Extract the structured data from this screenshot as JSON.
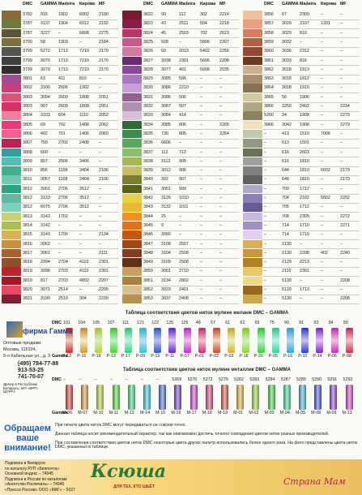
{
  "header": [
    "DMC",
    "GAMMA",
    "Madeira",
    "Кирова",
    "MF"
  ],
  "tables": [
    {
      "rows": [
        [
          "3782",
          "915",
          "1902",
          "6002",
          "2190"
        ],
        [
          "3787",
          "3137",
          "1904",
          "6012",
          "2192"
        ],
        [
          "3787",
          "3227",
          "–",
          "6808",
          "2275"
        ],
        [
          "3790",
          "58",
          "1903",
          "–",
          "2184"
        ],
        [
          "3799",
          "5272",
          "1713",
          "7210",
          "2170"
        ],
        [
          "3799",
          "3070",
          "1713",
          "7210",
          "2170"
        ],
        [
          "3799",
          "3079",
          "1713",
          "7210",
          "2170"
        ],
        [
          "3801",
          "63",
          "411",
          "810",
          "–"
        ],
        [
          "3802",
          "3100",
          "2606",
          "1302",
          "–"
        ],
        [
          "3803",
          "3094",
          "2609",
          "1808",
          "2051"
        ],
        [
          "3803",
          "907",
          "2609",
          "1808",
          "2051"
        ],
        [
          "3804",
          "3103",
          "604",
          "1110",
          "2052"
        ],
        [
          "3805",
          "69",
          "702",
          "1408",
          "2062"
        ],
        [
          "3806",
          "402",
          "701",
          "1406",
          "2060"
        ],
        [
          "3807",
          "759",
          "2702",
          "2408",
          "–"
        ],
        [
          "3808",
          "660",
          "–",
          "–",
          "–"
        ],
        [
          "3809",
          "857",
          "2506",
          "3406",
          "–"
        ],
        [
          "3810",
          "856",
          "1108",
          "3404",
          "2106"
        ],
        [
          "3811",
          "3057",
          "1108",
          "3404",
          "2106"
        ],
        [
          "3812",
          "3061",
          "2706",
          "3512",
          "–"
        ],
        [
          "3812",
          "3133",
          "2706",
          "3512",
          "–"
        ],
        [
          "3812",
          "6075",
          "2706",
          "3512",
          "–"
        ],
        [
          "3813",
          "3143",
          "1702",
          "–",
          "–"
        ],
        [
          "3814",
          "3142",
          "–",
          "–",
          "–"
        ],
        [
          "3815",
          "3143",
          "1700",
          "–",
          "2134"
        ],
        [
          "3816",
          "3062",
          "–",
          "–",
          "–"
        ],
        [
          "3817",
          "3061",
          "–",
          "–",
          "2111"
        ],
        [
          "3818",
          "2994",
          "2704",
          "4110",
          "2301"
        ],
        [
          "3819",
          "3098",
          "2703",
          "4110",
          "2301"
        ],
        [
          "3819",
          "817",
          "2703",
          "4802",
          "2207"
        ],
        [
          "3820",
          "3071",
          "2514",
          "–",
          "2205"
        ],
        [
          "3821",
          "3190",
          "2510",
          "304",
          "2239"
        ]
      ]
    },
    {
      "rows": [
        [
          "3822",
          "99",
          "112",
          "302",
          "2214"
        ],
        [
          "3823",
          "43",
          "2511",
          "504",
          "2218"
        ],
        [
          "3824",
          "45",
          "2503",
          "702",
          "2623"
        ],
        [
          "3825",
          "928",
          "–",
          "5806",
          "2307"
        ],
        [
          "3826",
          "50",
          "2013",
          "5402",
          "2256"
        ],
        [
          "3827",
          "3038",
          "2301",
          "5605",
          "2208"
        ],
        [
          "3828",
          "3077",
          "401",
          "5608",
          "2035"
        ],
        [
          "3829",
          "3085",
          "506",
          "–",
          "–"
        ],
        [
          "3830",
          "3086",
          "2210",
          "–",
          "–"
        ],
        [
          "3831",
          "3086",
          "506",
          "–",
          "–"
        ],
        [
          "3832",
          "3087",
          "507",
          "–",
          "–"
        ],
        [
          "3833",
          "3084",
          "414",
          "–",
          "–"
        ],
        [
          "3834",
          "3085",
          "806",
          "–",
          "2265"
        ],
        [
          "3835",
          "730",
          "805",
          "–",
          "2264"
        ],
        [
          "3836",
          "6606",
          "–",
          "–",
          "–"
        ],
        [
          "3837",
          "112",
          "712",
          "–",
          "–"
        ],
        [
          "3838",
          "3112",
          "905",
          "–",
          "–"
        ],
        [
          "3839",
          "3012",
          "906",
          "–",
          "–"
        ],
        [
          "3840",
          "302",
          "907",
          "–",
          "–"
        ],
        [
          "3841",
          "3001",
          "909",
          "–",
          "–"
        ],
        [
          "3842",
          "3126",
          "1010",
          "–",
          "–"
        ],
        [
          "3843",
          "3132",
          "1011",
          "–",
          "–"
        ],
        [
          "3844",
          "25",
          "–",
          "–",
          "–"
        ],
        [
          "3845",
          "9",
          "–",
          "–",
          "–"
        ],
        [
          "3846",
          "3090",
          "–",
          "–",
          "–"
        ],
        [
          "3847",
          "3108",
          "2507",
          "–",
          "–"
        ],
        [
          "3848",
          "3104",
          "2508",
          "–",
          "–"
        ],
        [
          "3849",
          "3109",
          "2508",
          "–",
          "–"
        ],
        [
          "3850",
          "3001",
          "2710",
          "–",
          "–"
        ],
        [
          "3851",
          "3134",
          "2802",
          "–",
          "–"
        ],
        [
          "3852",
          "3029",
          "2401",
          "–",
          "–"
        ],
        [
          "3853",
          "3037",
          "2408",
          "–",
          "–"
        ]
      ]
    },
    {
      "rows": [
        [
          "3856",
          "67",
          "2309",
          "–",
          "–"
        ],
        [
          "3857",
          "3029",
          "2107",
          "1201",
          "–"
        ],
        [
          "3858",
          "3029",
          "810",
          "–",
          "–"
        ],
        [
          "3859",
          "3032",
          "–",
          "–",
          "–"
        ],
        [
          "3860",
          "3036",
          "2312",
          "–",
          "–"
        ],
        [
          "3861",
          "3033",
          "816",
          "–",
          "–"
        ],
        [
          "3862",
          "3018",
          "1913",
          "–",
          "–"
        ],
        [
          "3863",
          "3018",
          "1912",
          "–",
          "–"
        ],
        [
          "3864",
          "3018",
          "1910",
          "–",
          "–"
        ],
        [
          "3865",
          "56",
          "1906",
          "–",
          "–"
        ],
        [
          "3866",
          "3250",
          "2402",
          "–",
          "2234"
        ],
        [
          "5200",
          "34",
          "1908",
          "–",
          "2279"
        ],
        [
          "3866",
          "3042",
          "1908",
          "–",
          "2279"
        ],
        [
          "–",
          "413",
          "1510",
          "7006",
          "–"
        ],
        [
          "–",
          "613",
          "1501",
          "–",
          "–"
        ],
        [
          "–",
          "616",
          "2603",
          "–",
          "–"
        ],
        [
          "–",
          "616",
          "1810",
          "–",
          "–"
        ],
        [
          "–",
          "644",
          "1810",
          "6602",
          "2179"
        ],
        [
          "–",
          "646",
          "1810",
          "–",
          "2179"
        ],
        [
          "–",
          "700",
          "1712",
          "–",
          "–"
        ],
        [
          "–",
          "704",
          "2102",
          "5802",
          "2202"
        ],
        [
          "–",
          "705",
          "1712",
          "–",
          "–"
        ],
        [
          "–",
          "708",
          "2305",
          "–",
          "2272"
        ],
        [
          "–",
          "714",
          "1710",
          "–",
          "2271"
        ],
        [
          "–",
          "714",
          "1710",
          "–",
          "–"
        ],
        [
          "–",
          "2130",
          "–",
          "–",
          "–"
        ],
        [
          "–",
          "2130",
          "2208",
          "402",
          "2240"
        ],
        [
          "–",
          "2120",
          "2213",
          "–",
          "–"
        ],
        [
          "–",
          "2110",
          "2301",
          "–",
          "–"
        ],
        [
          "–",
          "5130",
          "–",
          "–",
          "2208"
        ],
        [
          "–",
          "5120",
          "1713",
          "–",
          "–"
        ],
        [
          "–",
          "5130",
          "–",
          "–",
          "2208"
        ]
      ]
    }
  ],
  "melange": {
    "title": "Таблица соответствия цветов ниток мулине меланж DMC – GAMMA",
    "dmc_label": "DMC",
    "gamma_label": "Gamma",
    "dmc": [
      "101",
      "104",
      "105",
      "107",
      "111",
      "121",
      "122",
      "125",
      "126",
      "48",
      "57",
      "61",
      "62",
      "69",
      "75",
      "90",
      "91",
      "93",
      "94",
      "99"
    ],
    "gamma": [
      "P-12",
      "P-15",
      "P-19",
      "P-13",
      "P-17",
      "P-09",
      "P-13",
      "P-11",
      "P-07",
      "P-01",
      "P-02",
      "P-03",
      "P-18",
      "P-20",
      "P-05",
      "P-16",
      "P-10",
      "P-14",
      "P-06",
      "P-08"
    ]
  },
  "metallic": {
    "title": "Таблица соответствия цветов ниток мулине металлик DMC – GAMMA",
    "dmc_label": "DMC",
    "gamma_label": "Gamma",
    "dmc": [
      "–",
      "–",
      "–",
      "–",
      "–",
      "–",
      "–",
      "5269",
      "5270",
      "5272",
      "5279",
      "5282",
      "5283",
      "5284",
      "5287",
      "5289",
      "5290",
      "5291",
      "5292"
    ],
    "gamma": [
      "M-06",
      "M-07",
      "M-10",
      "M-11",
      "M-12",
      "M-14",
      "M-15",
      "M-16",
      "M-17",
      "M-18",
      "M-19",
      "M-01",
      "M-02",
      "M-03",
      "M-04",
      "M-05",
      "M-08",
      "M-09",
      "M-13"
    ]
  },
  "company": {
    "name": "фирма Гамма",
    "lines": [
      "Оптовые продажи:",
      "Москва, 111024,",
      "5-я Кабельная ул., д. 3",
      "(495) 784-77-88",
      "913-53-25",
      "741-70-07"
    ],
    "dealer": "Дилер в Республике Беларусь: ИП «ВРП-ШУРА»"
  },
  "notice": "Обращаем ваше внимание!",
  "notes": [
    "При печати цвета ниток DMC могут передаваться не совсем точно.",
    "Данная таблица носит рекомендательный характер, так как невозможно достичь точного совпадения цветов ниток разных производителей.",
    "При составлении соответствия цветов ниток DMC некоторые цвета других палитр использовались более одного раза. На фото представлены цвета ниток DMC, указанных в таблице."
  ],
  "subscription": [
    "Подписка в Беларуси",
    "по каталогу РУП «Белпочта»",
    "Основной индекс – 74945",
    "Подписка в России по каталогам:",
    "«Агентство Роспечать» – 74945",
    "«Пресса России» ООО «МАГ» – 5027"
  ],
  "magazine": {
    "title": "Ксюша",
    "tagline": "ДЛЯ ТЕХ, КТО ШЬЁТ"
  },
  "watermark": "Страна Мам"
}
